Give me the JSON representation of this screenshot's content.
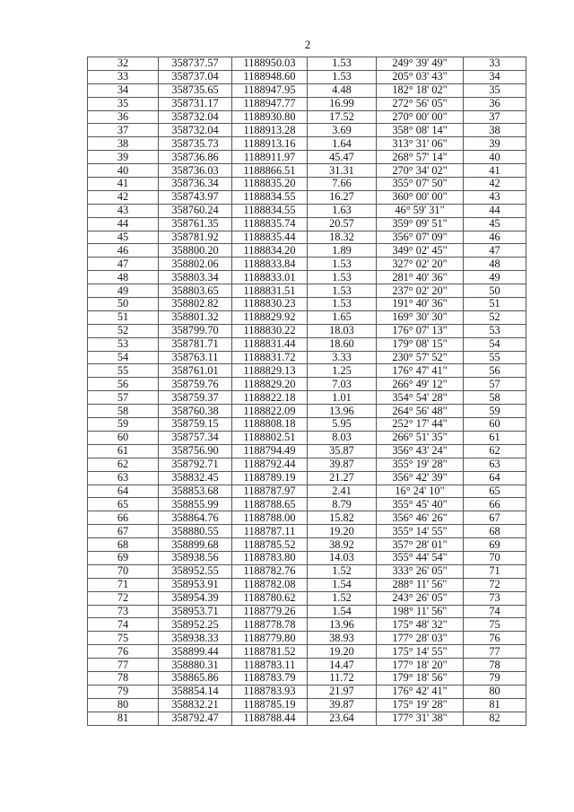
{
  "page_number": "2",
  "rows": [
    [
      "32",
      "358737.57",
      "1188950.03",
      "1.53",
      "249° 39' 49\"",
      "33"
    ],
    [
      "33",
      "358737.04",
      "1188948.60",
      "1.53",
      "205° 03' 43\"",
      "34"
    ],
    [
      "34",
      "358735.65",
      "1188947.95",
      "4.48",
      "182° 18' 02\"",
      "35"
    ],
    [
      "35",
      "358731.17",
      "1188947.77",
      "16.99",
      "272° 56' 05\"",
      "36"
    ],
    [
      "36",
      "358732.04",
      "1188930.80",
      "17.52",
      "270° 00' 00\"",
      "37"
    ],
    [
      "37",
      "358732.04",
      "1188913.28",
      "3.69",
      "358° 08' 14\"",
      "38"
    ],
    [
      "38",
      "358735.73",
      "1188913.16",
      "1.64",
      "313° 31' 06\"",
      "39"
    ],
    [
      "39",
      "358736.86",
      "1188911.97",
      "45.47",
      "268° 57' 14\"",
      "40"
    ],
    [
      "40",
      "358736.03",
      "1188866.51",
      "31.31",
      "270° 34' 02\"",
      "41"
    ],
    [
      "41",
      "358736.34",
      "1188835.20",
      "7.66",
      "355° 07' 50\"",
      "42"
    ],
    [
      "42",
      "358743.97",
      "1188834.55",
      "16.27",
      "360° 00' 00\"",
      "43"
    ],
    [
      "43",
      "358760.24",
      "1188834.55",
      "1.63",
      "46° 59' 31\"",
      "44"
    ],
    [
      "44",
      "358761.35",
      "1188835.74",
      "20.57",
      "359° 09' 51\"",
      "45"
    ],
    [
      "45",
      "358781.92",
      "1188835.44",
      "18.32",
      "356° 07' 09\"",
      "46"
    ],
    [
      "46",
      "358800.20",
      "1188834.20",
      "1.89",
      "349° 02' 45\"",
      "47"
    ],
    [
      "47",
      "358802.06",
      "1188833.84",
      "1.53",
      "327° 02' 20\"",
      "48"
    ],
    [
      "48",
      "358803.34",
      "1188833.01",
      "1.53",
      "281° 40' 36\"",
      "49"
    ],
    [
      "49",
      "358803.65",
      "1188831.51",
      "1.53",
      "237° 02' 20\"",
      "50"
    ],
    [
      "50",
      "358802.82",
      "1188830.23",
      "1.53",
      "191° 40' 36\"",
      "51"
    ],
    [
      "51",
      "358801.32",
      "1188829.92",
      "1.65",
      "169° 30' 30\"",
      "52"
    ],
    [
      "52",
      "358799.70",
      "1188830.22",
      "18.03",
      "176° 07' 13\"",
      "53"
    ],
    [
      "53",
      "358781.71",
      "1188831.44",
      "18.60",
      "179° 08' 15\"",
      "54"
    ],
    [
      "54",
      "358763.11",
      "1188831.72",
      "3.33",
      "230° 57' 52\"",
      "55"
    ],
    [
      "55",
      "358761.01",
      "1188829.13",
      "1.25",
      "176° 47' 41\"",
      "56"
    ],
    [
      "56",
      "358759.76",
      "1188829.20",
      "7.03",
      "266° 49' 12\"",
      "57"
    ],
    [
      "57",
      "358759.37",
      "1188822.18",
      "1.01",
      "354° 54' 28\"",
      "58"
    ],
    [
      "58",
      "358760.38",
      "1188822.09",
      "13.96",
      "264° 56' 48\"",
      "59"
    ],
    [
      "59",
      "358759.15",
      "1188808.18",
      "5.95",
      "252° 17' 44\"",
      "60"
    ],
    [
      "60",
      "358757.34",
      "1188802.51",
      "8.03",
      "266° 51' 35\"",
      "61"
    ],
    [
      "61",
      "358756.90",
      "1188794.49",
      "35.87",
      "356° 43' 24\"",
      "62"
    ],
    [
      "62",
      "358792.71",
      "1188792.44",
      "39.87",
      "355° 19' 28\"",
      "63"
    ],
    [
      "63",
      "358832.45",
      "1188789.19",
      "21.27",
      "356° 42' 39\"",
      "64"
    ],
    [
      "64",
      "358853.68",
      "1188787.97",
      "2.41",
      "16° 24' 10\"",
      "65"
    ],
    [
      "65",
      "358855.99",
      "1188788.65",
      "8.79",
      "355° 45' 40\"",
      "66"
    ],
    [
      "66",
      "358864.76",
      "1188788.00",
      "15.82",
      "356° 46' 26\"",
      "67"
    ],
    [
      "67",
      "358880.55",
      "1188787.11",
      "19.20",
      "355° 14' 55\"",
      "68"
    ],
    [
      "68",
      "358899.68",
      "1188785.52",
      "38.92",
      "357° 28' 01\"",
      "69"
    ],
    [
      "69",
      "358938.56",
      "1188783.80",
      "14.03",
      "355° 44' 54\"",
      "70"
    ],
    [
      "70",
      "358952.55",
      "1188782.76",
      "1.52",
      "333° 26' 05\"",
      "71"
    ],
    [
      "71",
      "358953.91",
      "1188782.08",
      "1.54",
      "288° 11' 56\"",
      "72"
    ],
    [
      "72",
      "358954.39",
      "1188780.62",
      "1.52",
      "243° 26' 05\"",
      "73"
    ],
    [
      "73",
      "358953.71",
      "1188779.26",
      "1.54",
      "198° 11' 56\"",
      "74"
    ],
    [
      "74",
      "358952.25",
      "1188778.78",
      "13.96",
      "175° 48' 32\"",
      "75"
    ],
    [
      "75",
      "358938.33",
      "1188779.80",
      "38.93",
      "177° 28' 03\"",
      "76"
    ],
    [
      "76",
      "358899.44",
      "1188781.52",
      "19.20",
      "175° 14' 55\"",
      "77"
    ],
    [
      "77",
      "358880.31",
      "1188783.11",
      "14.47",
      "177° 18' 20\"",
      "78"
    ],
    [
      "78",
      "358865.86",
      "1188783.79",
      "11.72",
      "179° 18' 56\"",
      "79"
    ],
    [
      "79",
      "358854.14",
      "1188783.93",
      "21.97",
      "176° 42' 41\"",
      "80"
    ],
    [
      "80",
      "358832.21",
      "1188785.19",
      "39.87",
      "175° 19' 28\"",
      "81"
    ],
    [
      "81",
      "358792.47",
      "1188788.44",
      "23.64",
      "177° 31' 38\"",
      "82"
    ]
  ]
}
